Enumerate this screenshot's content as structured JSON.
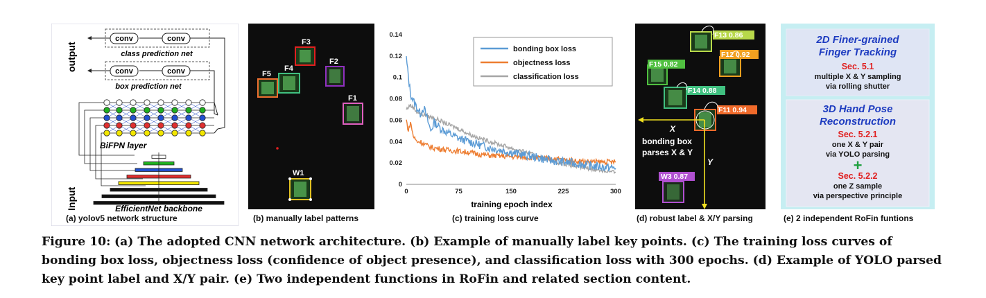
{
  "panel_a": {
    "output_label": "output",
    "input_label": "Input",
    "conv": "conv",
    "class_net": "class prediction net",
    "box_net": "box prediction net",
    "bifpn": "BiFPN layer",
    "backbone": "EfficientNet backbone",
    "subcaption": "(a) yolov5 network structure",
    "colors": [
      "#f2e600",
      "#e03030",
      "#2050d0",
      "#20b020",
      "#ffffff"
    ]
  },
  "panel_b": {
    "labels": [
      "F3",
      "F4",
      "F5",
      "F2",
      "F1",
      "W1"
    ],
    "subcaption": "(b) manually label patterns"
  },
  "panel_c": {
    "subcaption": "(c) training loss curve",
    "chart_data": {
      "type": "line",
      "xlabel": "training epoch index",
      "ylabel": "",
      "xlim": [
        0,
        300
      ],
      "ylim": [
        0,
        0.14
      ],
      "xticks": [
        "0",
        "75",
        "150",
        "225",
        "300"
      ],
      "yticks": [
        "0",
        "0.02",
        "0.04",
        "0.06",
        "0.08",
        "0.1",
        "0.12",
        "0.14"
      ],
      "legend_position": "top-right",
      "grid": false,
      "series": [
        {
          "name": "bonding box loss",
          "color": "#5b9bd5",
          "x": [
            0,
            3,
            6,
            10,
            15,
            20,
            25,
            30,
            35,
            40,
            50,
            60,
            75,
            90,
            105,
            120,
            150,
            180,
            210,
            240,
            270,
            300
          ],
          "y": [
            0.118,
            0.1,
            0.085,
            0.078,
            0.072,
            0.066,
            0.072,
            0.061,
            0.05,
            0.058,
            0.052,
            0.048,
            0.043,
            0.04,
            0.037,
            0.034,
            0.03,
            0.026,
            0.022,
            0.02,
            0.017,
            0.015
          ]
        },
        {
          "name": "objectness loss",
          "color": "#ed7d31",
          "x": [
            0,
            3,
            6,
            10,
            15,
            20,
            25,
            30,
            40,
            50,
            60,
            75,
            90,
            105,
            120,
            150,
            180,
            210,
            240,
            270,
            300
          ],
          "y": [
            0.06,
            0.05,
            0.058,
            0.045,
            0.04,
            0.04,
            0.038,
            0.036,
            0.034,
            0.033,
            0.032,
            0.031,
            0.03,
            0.028,
            0.027,
            0.026,
            0.025,
            0.024,
            0.022,
            0.021,
            0.021
          ]
        },
        {
          "name": "classification loss",
          "color": "#a5a5a5",
          "x": [
            0,
            5,
            10,
            15,
            20,
            30,
            40,
            50,
            60,
            75,
            90,
            105,
            120,
            150,
            180,
            210,
            240,
            270,
            300
          ],
          "y": [
            0.07,
            0.074,
            0.072,
            0.068,
            0.066,
            0.064,
            0.062,
            0.059,
            0.056,
            0.052,
            0.047,
            0.043,
            0.04,
            0.034,
            0.028,
            0.022,
            0.017,
            0.014,
            0.011
          ]
        }
      ]
    }
  },
  "panel_d": {
    "labels": [
      {
        "text": "F13 0.86",
        "color": "#b8d84a"
      },
      {
        "text": "F12 0.92",
        "color": "#f2a020"
      },
      {
        "text": "F15 0.82",
        "color": "#50c040"
      },
      {
        "text": "F14 0.88",
        "color": "#40c080"
      },
      {
        "text": "F11 0.94",
        "color": "#f06a2a"
      },
      {
        "text": "W3 0.87",
        "color": "#b050d0"
      }
    ],
    "x_axis": "X",
    "y_axis": "Y",
    "parse_text_1": "bonding box",
    "parse_text_2": "parses X & Y",
    "subcaption": "(d) robust label & X/Y parsing"
  },
  "panel_e": {
    "box1_title_1": "2D Finer-grained",
    "box1_title_2": "Finger Tracking",
    "box1_sec": "Sec. 5.1",
    "box1_desc_1": "multiple X & Y sampling",
    "box1_desc_2": "via rolling shutter",
    "box2_title_1": "3D Hand Pose",
    "box2_title_2": "Reconstruction",
    "box2_sec1": "Sec. 5.2.1",
    "box2_desc1_1": "one X & Y pair",
    "box2_desc1_2": "via YOLO parsing",
    "plus": "+",
    "box2_sec2": "Sec. 5.2.2",
    "box2_desc2_1": "one Z sample",
    "box2_desc2_2": "via perspective principle",
    "subcaption": "(e) 2 independent RoFin funtions"
  },
  "caption": {
    "lead": "Figure 10:",
    "text": "(a) The adopted CNN network architecture. (b) Example of manually label key points. (c) The training loss curves of bonding box loss, objectness loss (confidence of object presence), and classification loss with 300 epochs. (d) Example of YOLO parsed key point label and X/Y pair. (e) Two independent functions in RoFin and related section content."
  }
}
